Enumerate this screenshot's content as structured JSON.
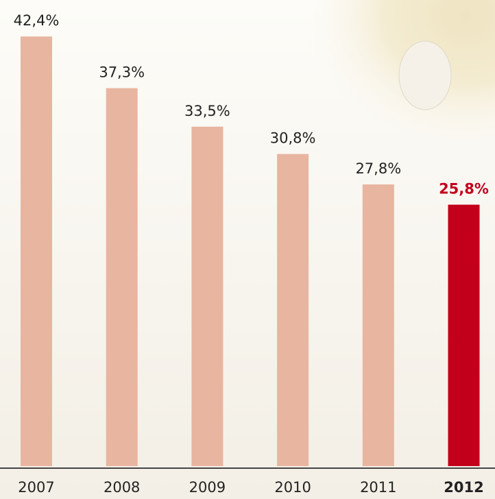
{
  "chart_data": {
    "type": "bar",
    "categories": [
      "2007",
      "2008",
      "2009",
      "2010",
      "2011",
      "2012"
    ],
    "values": [
      42.4,
      37.3,
      33.5,
      30.8,
      27.8,
      25.8
    ],
    "value_labels": [
      "42,4%",
      "37,3%",
      "33,5%",
      "30,8%",
      "27,8%",
      "25,8%"
    ],
    "color": "#e8b5a1",
    "highlight": "2012",
    "highlight_color": "#c3001b",
    "ylim": [
      0,
      46
    ]
  }
}
